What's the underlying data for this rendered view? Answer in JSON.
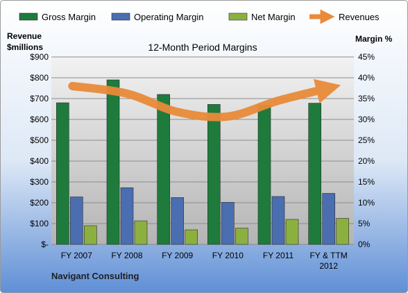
{
  "chart_data": {
    "type": "bar",
    "title": "12-Month Period Margins",
    "categories": [
      "FY 2007",
      "FY 2008",
      "FY 2009",
      "FY 2010",
      "FY 2011",
      "FY & TTM 2012"
    ],
    "series": [
      {
        "name": "Gross Margin",
        "axis": "left",
        "values": [
          680,
          790,
          720,
          672,
          668,
          678
        ],
        "color": "#1e7b3c"
      },
      {
        "name": "Operating Margin",
        "axis": "left",
        "values": [
          228,
          272,
          225,
          202,
          230,
          245
        ],
        "color": "#4a6eb0"
      },
      {
        "name": "Net Margin",
        "axis": "left",
        "values": [
          90,
          113,
          70,
          78,
          120,
          125
        ],
        "color": "#8cb040"
      }
    ],
    "line_series": {
      "name": "Revenues",
      "axis": "right",
      "values": [
        38.0,
        36.2,
        31.8,
        30.7,
        34.5,
        37.5
      ],
      "color": "#e98b3a"
    },
    "y_left": {
      "label_line1": "Revenue",
      "label_line2": "$millions",
      "lim": [
        0,
        900
      ],
      "ticks": [
        0,
        100,
        200,
        300,
        400,
        500,
        600,
        700,
        800,
        900
      ],
      "tick_labels": [
        "$-",
        "$100",
        "$200",
        "$300",
        "$400",
        "$500",
        "$600",
        "$700",
        "$800",
        "$900"
      ]
    },
    "y_right": {
      "label": "Margin %",
      "lim": [
        0,
        45
      ],
      "ticks": [
        0,
        5,
        10,
        15,
        20,
        25,
        30,
        35,
        40,
        45
      ],
      "tick_labels": [
        "0%",
        "5%",
        "10%",
        "15%",
        "20%",
        "25%",
        "30%",
        "35%",
        "40%",
        "45%"
      ]
    },
    "legend_position": "top",
    "grid": true
  },
  "footer_text": "Navigant Consulting"
}
